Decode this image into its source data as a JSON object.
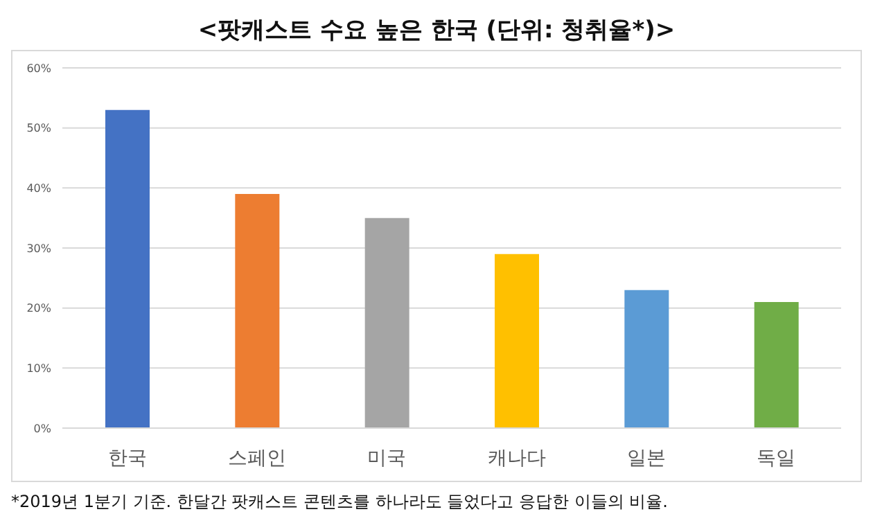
{
  "chart_data": {
    "type": "bar",
    "title": "<팟캐스트 수요 높은 한국 (단위: 청취율*)>",
    "categories": [
      "한국",
      "스페인",
      "미국",
      "캐나다",
      "일본",
      "독일"
    ],
    "values": [
      53,
      39,
      35,
      29,
      23,
      21
    ],
    "colors": [
      "#4472c4",
      "#ed7d31",
      "#a5a5a5",
      "#ffc000",
      "#5b9bd5",
      "#70ad47"
    ],
    "ylim": [
      0,
      60
    ],
    "yticks": [
      {
        "value": 0,
        "label": "0%"
      },
      {
        "value": 10,
        "label": "10%"
      },
      {
        "value": 20,
        "label": "20%"
      },
      {
        "value": 30,
        "label": "30%"
      },
      {
        "value": 40,
        "label": "40%"
      },
      {
        "value": 50,
        "label": "50%"
      },
      {
        "value": 60,
        "label": "60%"
      }
    ],
    "grid": "y",
    "annotations": [
      "*2019년 1분기 기준. 한달간 팟캐스트 콘텐츠를 하나라도 들었다고 응답한 이들의 비율."
    ]
  }
}
